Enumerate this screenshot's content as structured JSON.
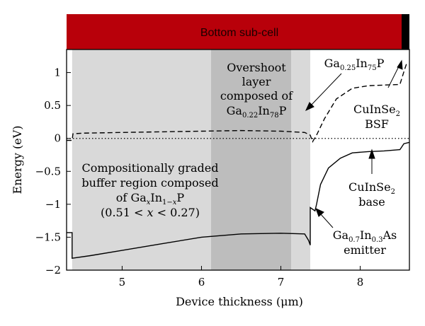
{
  "chart_data": {
    "type": "line",
    "title": "",
    "xlabel": "Device thickness (μm)",
    "ylabel": "Energy (eV)",
    "xlim": [
      4.3,
      8.62
    ],
    "ylim": [
      -2.0,
      1.35
    ],
    "xticks": [
      5,
      6,
      7,
      8
    ],
    "yticks": [
      -2,
      -1.5,
      -1,
      -0.5,
      0,
      0.5,
      1
    ],
    "ytick_labels": [
      "−2",
      "−1.5",
      "−1",
      "−0.5",
      "0",
      "0.5",
      "1"
    ],
    "grid": false,
    "zero_reference_line": "dotted",
    "header_bar": {
      "label": "Bottom sub-cell",
      "color": "#b8000a",
      "end_color": "#000000"
    },
    "regions": [
      {
        "x": [
          4.37,
          6.12
        ],
        "color": "#d9d9d9"
      },
      {
        "x": [
          6.12,
          7.13
        ],
        "color": "#bdbdbd"
      },
      {
        "x": [
          7.13,
          7.37
        ],
        "color": "#d9d9d9"
      }
    ],
    "series": [
      {
        "style": "dashed",
        "x": [
          4.3,
          4.37,
          4.38,
          4.5,
          5.0,
          5.5,
          6.0,
          6.5,
          7.0,
          7.3,
          7.37,
          7.4,
          7.45,
          7.55,
          7.7,
          7.9,
          8.1,
          8.3,
          8.5,
          8.56,
          8.58,
          8.62
        ],
        "y": [
          -0.03,
          -0.03,
          0.07,
          0.08,
          0.09,
          0.1,
          0.11,
          0.12,
          0.11,
          0.09,
          0.05,
          -0.05,
          0.05,
          0.3,
          0.6,
          0.76,
          0.8,
          0.81,
          0.82,
          1.05,
          1.12,
          1.1
        ]
      },
      {
        "style": "solid",
        "x": [
          4.3,
          4.37,
          4.37,
          4.6,
          5.0,
          5.5,
          6.0,
          6.5,
          7.0,
          7.3,
          7.35,
          7.37,
          7.37,
          7.43,
          7.45,
          7.5,
          7.6,
          7.75,
          7.9,
          8.1,
          8.3,
          8.5,
          8.55,
          8.62
        ],
        "y": [
          -1.43,
          -1.43,
          -1.82,
          -1.78,
          -1.7,
          -1.6,
          -1.5,
          -1.45,
          -1.44,
          -1.45,
          -1.55,
          -1.62,
          -1.05,
          -1.1,
          -1.0,
          -0.7,
          -0.45,
          -0.3,
          -0.22,
          -0.2,
          -0.19,
          -0.17,
          -0.08,
          -0.06
        ]
      }
    ],
    "annotations": [
      {
        "id": "overshoot",
        "lines": [
          "Overshoot",
          "layer",
          "composed of",
          "Ga0.22In78P"
        ]
      },
      {
        "id": "ga025",
        "lines": [
          "Ga0.25In75P"
        ]
      },
      {
        "id": "bsf",
        "lines": [
          "CuInSe2",
          "BSF"
        ]
      },
      {
        "id": "buffer",
        "lines": [
          "Compositionally graded",
          "buffer region composed",
          "of GaxIn1−xP",
          "(0.51 < x < 0.27)"
        ]
      },
      {
        "id": "base",
        "lines": [
          "CuInSe2",
          "base"
        ]
      },
      {
        "id": "emitter",
        "lines": [
          "Ga0.7In0.3As",
          "emitter"
        ]
      }
    ]
  }
}
